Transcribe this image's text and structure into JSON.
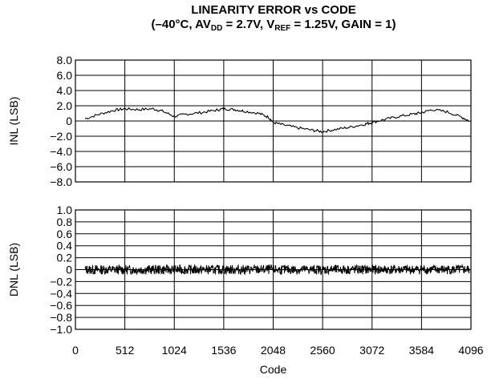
{
  "title": {
    "line1": "LINEARITY ERROR vs CODE",
    "open": "(–40°C, AV",
    "sub1": "DD",
    "mid1": " = 2.7V, V",
    "sub2": "REF",
    "rest": " = 1.25V, GAIN = 1)"
  },
  "chart_data": [
    {
      "type": "line",
      "ylabel": "INL (LSB)",
      "xlabel": "",
      "ylim": [
        -8.0,
        8.0
      ],
      "xlim": [
        0,
        4096
      ],
      "yticks": [
        "8.0",
        "6.0",
        "4.0",
        "2.0",
        "0",
        "−2.0",
        "−4.0",
        "−6.0",
        "−8.0"
      ],
      "ytick_values": [
        8,
        6,
        4,
        2,
        0,
        -2,
        -4,
        -6,
        -8
      ],
      "grid": true,
      "series": [
        {
          "x": [
            100,
            250,
            400,
            512,
            650,
            800,
            900,
            1024,
            1150,
            1300,
            1450,
            1536,
            1650,
            1750,
            1900,
            2000,
            2048,
            2150,
            2300,
            2450,
            2560,
            2700,
            2850,
            3000,
            3072,
            3200,
            3350,
            3500,
            3584,
            3700,
            3850,
            4000,
            4080
          ],
          "y": [
            0.3,
            0.9,
            1.4,
            1.6,
            1.5,
            1.6,
            1.3,
            0.6,
            0.9,
            1.1,
            1.4,
            1.6,
            1.5,
            1.3,
            1.0,
            0.5,
            -0.2,
            -0.5,
            -0.9,
            -1.2,
            -1.4,
            -1.1,
            -0.8,
            -0.4,
            -0.2,
            0.2,
            0.6,
            0.9,
            1.1,
            1.5,
            1.2,
            0.5,
            0.0
          ]
        }
      ]
    },
    {
      "type": "line",
      "ylabel": "DNL (LSB)",
      "xlabel": "Code",
      "ylim": [
        -1.0,
        1.0
      ],
      "xlim": [
        0,
        4096
      ],
      "yticks": [
        "1.0",
        "0.8",
        "0.6",
        "0.4",
        "0.2",
        "0",
        "−0.2",
        "−0.4",
        "−0.6",
        "−0.8",
        "−1.0"
      ],
      "ytick_values": [
        1.0,
        0.8,
        0.6,
        0.4,
        0.2,
        0,
        -0.2,
        -0.4,
        -0.6,
        -0.8,
        -1.0
      ],
      "xticks": [
        "0",
        "512",
        "1024",
        "1536",
        "2048",
        "2560",
        "3072",
        "3584",
        "4096"
      ],
      "xtick_values": [
        0,
        512,
        1024,
        1536,
        2048,
        2560,
        3072,
        3584,
        4096
      ],
      "grid": true,
      "series": [
        {
          "x_range": [
            100,
            4080
          ],
          "center": 0.0,
          "band": 0.08
        }
      ]
    }
  ]
}
